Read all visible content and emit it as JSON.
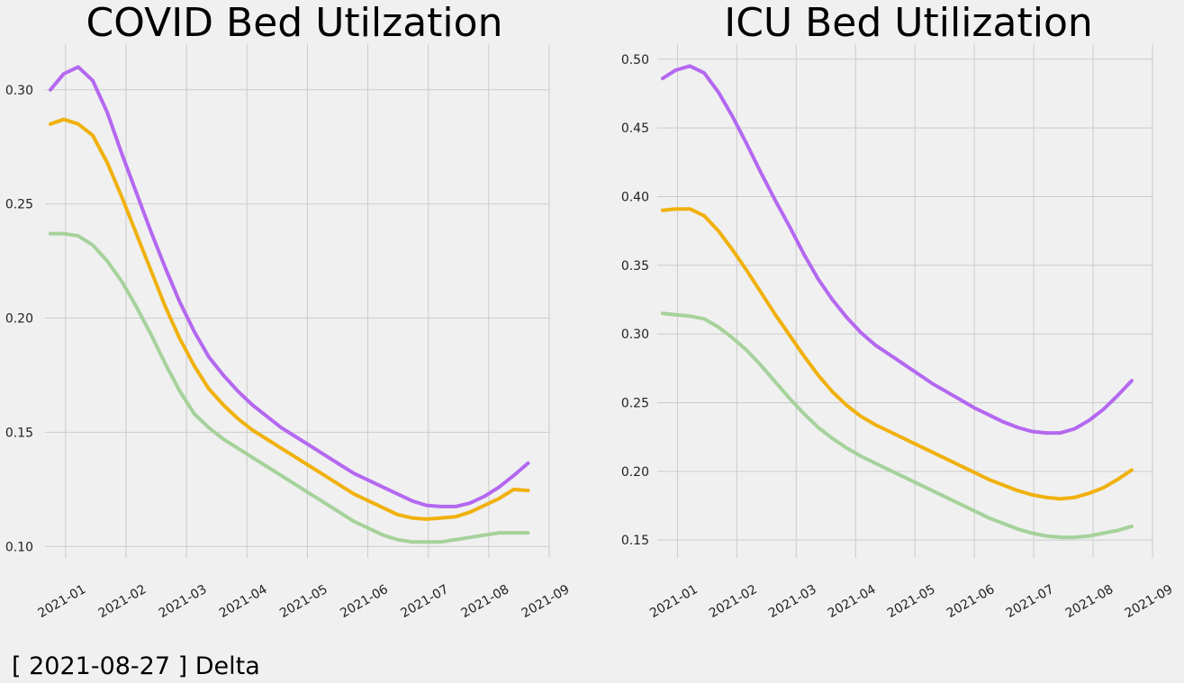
{
  "caption": "[ 2021-08-27 ] Delta",
  "chart_data": [
    {
      "type": "line",
      "title": "COVID Bed Utilzation",
      "xlabel": "",
      "ylabel": "",
      "x_ticks": [
        "2021-01",
        "2021-02",
        "2021-03",
        "2021-04",
        "2021-05",
        "2021-06",
        "2021-07",
        "2021-08",
        "2021-09"
      ],
      "y_ticks": [
        "0.10",
        "0.15",
        "0.20",
        "0.25",
        "0.30"
      ],
      "ylim": [
        0.095,
        0.32
      ],
      "x_range": [
        -0.34,
        8.0
      ],
      "x": [
        -0.25,
        -0.03,
        0.21,
        0.45,
        0.69,
        0.93,
        1.17,
        1.41,
        1.65,
        1.89,
        2.13,
        2.37,
        2.61,
        2.85,
        3.09,
        3.33,
        3.57,
        3.81,
        4.05,
        4.29,
        4.53,
        4.77,
        5.01,
        5.25,
        5.49,
        5.73,
        5.97,
        6.21,
        6.45,
        6.69,
        6.93,
        7.17,
        7.41,
        7.65
      ],
      "series": [
        {
          "name": "series-purple",
          "color": "#b468f0",
          "values": [
            0.3,
            0.307,
            0.31,
            0.304,
            0.29,
            0.272,
            0.255,
            0.238,
            0.222,
            0.207,
            0.194,
            0.183,
            0.175,
            0.168,
            0.162,
            0.157,
            0.152,
            0.148,
            0.144,
            0.14,
            0.136,
            0.132,
            0.129,
            0.126,
            0.123,
            0.12,
            0.118,
            0.1175,
            0.1175,
            0.119,
            0.122,
            0.126,
            0.131,
            0.1365
          ]
        },
        {
          "name": "series-orange",
          "color": "#f0b10d",
          "values": [
            0.285,
            0.287,
            0.285,
            0.28,
            0.268,
            0.253,
            0.237,
            0.221,
            0.205,
            0.191,
            0.179,
            0.169,
            0.162,
            0.156,
            0.151,
            0.147,
            0.143,
            0.139,
            0.135,
            0.131,
            0.127,
            0.123,
            0.12,
            0.117,
            0.114,
            0.1125,
            0.112,
            0.1125,
            0.113,
            0.115,
            0.118,
            0.121,
            0.125,
            0.1245
          ]
        },
        {
          "name": "series-green",
          "color": "#a5d29b",
          "values": [
            0.237,
            0.237,
            0.236,
            0.232,
            0.225,
            0.216,
            0.205,
            0.193,
            0.18,
            0.168,
            0.158,
            0.152,
            0.147,
            0.143,
            0.139,
            0.135,
            0.131,
            0.127,
            0.123,
            0.119,
            0.115,
            0.111,
            0.108,
            0.105,
            0.103,
            0.102,
            0.102,
            0.102,
            0.103,
            0.104,
            0.105,
            0.106,
            0.106,
            0.106
          ]
        }
      ]
    },
    {
      "type": "line",
      "title": "ICU Bed Utilization",
      "xlabel": "",
      "ylabel": "",
      "x_ticks": [
        "2021-01",
        "2021-02",
        "2021-03",
        "2021-04",
        "2021-05",
        "2021-06",
        "2021-07",
        "2021-08",
        "2021-09"
      ],
      "y_ticks": [
        "0.15",
        "0.20",
        "0.25",
        "0.30",
        "0.35",
        "0.40",
        "0.45",
        "0.50"
      ],
      "ylim": [
        0.137,
        0.511
      ],
      "x_range": [
        -0.34,
        8.0
      ],
      "x": [
        -0.25,
        -0.03,
        0.21,
        0.45,
        0.69,
        0.93,
        1.17,
        1.41,
        1.65,
        1.89,
        2.13,
        2.37,
        2.61,
        2.85,
        3.09,
        3.33,
        3.57,
        3.81,
        4.05,
        4.29,
        4.53,
        4.77,
        5.01,
        5.25,
        5.49,
        5.73,
        5.97,
        6.21,
        6.45,
        6.69,
        6.93,
        7.17,
        7.41,
        7.65
      ],
      "series": [
        {
          "name": "series-purple",
          "color": "#b468f0",
          "values": [
            0.486,
            0.492,
            0.495,
            0.49,
            0.476,
            0.458,
            0.438,
            0.417,
            0.397,
            0.378,
            0.358,
            0.34,
            0.325,
            0.312,
            0.301,
            0.292,
            0.285,
            0.278,
            0.271,
            0.264,
            0.258,
            0.252,
            0.246,
            0.241,
            0.236,
            0.232,
            0.229,
            0.228,
            0.228,
            0.231,
            0.237,
            0.245,
            0.255,
            0.266
          ]
        },
        {
          "name": "series-orange",
          "color": "#f0b10d",
          "values": [
            0.39,
            0.391,
            0.391,
            0.386,
            0.375,
            0.361,
            0.346,
            0.33,
            0.314,
            0.299,
            0.284,
            0.27,
            0.258,
            0.248,
            0.24,
            0.234,
            0.229,
            0.224,
            0.219,
            0.214,
            0.209,
            0.204,
            0.199,
            0.194,
            0.19,
            0.186,
            0.183,
            0.181,
            0.18,
            0.181,
            0.184,
            0.188,
            0.194,
            0.201
          ]
        },
        {
          "name": "series-green",
          "color": "#a5d29b",
          "values": [
            0.315,
            0.314,
            0.313,
            0.311,
            0.305,
            0.297,
            0.288,
            0.277,
            0.265,
            0.253,
            0.242,
            0.232,
            0.224,
            0.217,
            0.211,
            0.206,
            0.201,
            0.196,
            0.191,
            0.186,
            0.181,
            0.176,
            0.171,
            0.166,
            0.162,
            0.158,
            0.155,
            0.153,
            0.152,
            0.152,
            0.153,
            0.155,
            0.157,
            0.16
          ]
        }
      ]
    }
  ]
}
